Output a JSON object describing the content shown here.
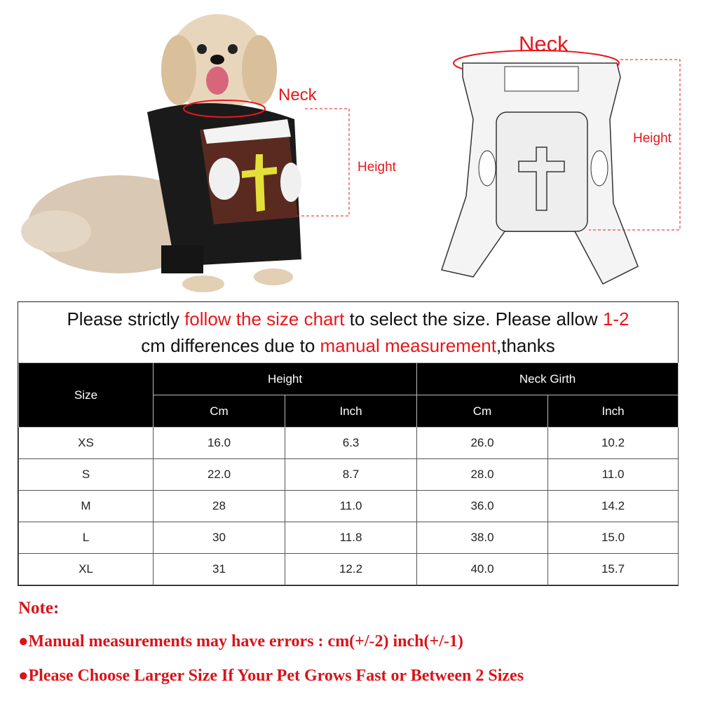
{
  "images": {
    "dog_photo": {
      "neck_label": "Neck",
      "height_label": "Height"
    },
    "costume_sketch": {
      "neck_label": "Neck",
      "height_label": "Height"
    }
  },
  "banner": {
    "part1": "Please strictly ",
    "part2": "follow the size chart",
    "part3": " to select the size. Please allow ",
    "part4": "1-2",
    "part5": "cm differences due to ",
    "part6": "manual measurement",
    "part7": ",thanks"
  },
  "table": {
    "size_header": "Size",
    "groups": [
      "Height",
      "Neck Girth"
    ],
    "subheaders": [
      "Cm",
      "Inch",
      "Cm",
      "Inch"
    ],
    "rows": [
      [
        "XS",
        "16.0",
        "6.3",
        "26.0",
        "10.2"
      ],
      [
        "S",
        "22.0",
        "8.7",
        "28.0",
        "11.0"
      ],
      [
        "M",
        "28",
        "11.0",
        "36.0",
        "14.2"
      ],
      [
        "L",
        "30",
        "11.8",
        "38.0",
        "15.0"
      ],
      [
        "XL",
        "31",
        "12.2",
        "40.0",
        "15.7"
      ]
    ]
  },
  "notes": {
    "title": "Note:",
    "items": [
      "●Manual measurements may have errors : cm(+/-2)  inch(+/-1)",
      "●Please Choose Larger Size If Your Pet Grows Fast or Between 2 Sizes"
    ]
  },
  "colors": {
    "accent_red": "#e8171c",
    "header_bg": "#000000"
  }
}
